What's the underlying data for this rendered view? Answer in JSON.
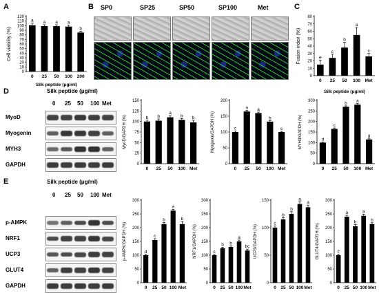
{
  "panels": {
    "A": "A",
    "B": "B",
    "C": "C",
    "D": "D",
    "E": "E"
  },
  "micrograph_labels": [
    "SP0",
    "SP25",
    "SP50",
    "SP100",
    "Met"
  ],
  "blot_header": "Silk peptide (μg/ml)",
  "blot_doses": [
    "0",
    "25",
    "50",
    "100",
    "Met"
  ],
  "blots_D": [
    "MyoD",
    "Myogenin",
    "MYH3",
    "GAPDH"
  ],
  "blots_E": [
    "p-AMPK",
    "NRF1",
    "UCP3",
    "GLUT4",
    "GAPDH"
  ],
  "chart_data": [
    {
      "id": "A",
      "type": "bar",
      "categories": [
        "0",
        "25",
        "50",
        "100",
        "200"
      ],
      "values": [
        101,
        99,
        99,
        98,
        85
      ],
      "errors": [
        5,
        3,
        3,
        3,
        3
      ],
      "letters": [
        "a",
        "a",
        "a",
        "a",
        "b"
      ],
      "ylabel": "Cell viability (%)",
      "xlabel": "Silk peptide (μg/ml)",
      "ylim": [
        0,
        120
      ],
      "yticks": [
        0,
        10,
        20,
        30,
        40,
        50,
        60,
        70,
        80,
        90,
        100,
        110,
        120
      ]
    },
    {
      "id": "C",
      "type": "bar",
      "categories": [
        "0",
        "25",
        "50",
        "100",
        "Met"
      ],
      "values": [
        15,
        24,
        38,
        55,
        26
      ],
      "errors": [
        6,
        5,
        7,
        10,
        4
      ],
      "letters": [
        "e",
        "c",
        "b",
        "a",
        "c"
      ],
      "ylabel": "Fusion index (%)",
      "xlabel": "Silk peptide (μg/ml)",
      "ylim": [
        0,
        80
      ],
      "yticks": [
        0,
        10,
        20,
        30,
        40,
        50,
        60,
        70,
        80
      ]
    },
    {
      "id": "D1",
      "type": "bar",
      "categories": [
        "0",
        "25",
        "50",
        "100",
        "Met"
      ],
      "values": [
        100,
        102,
        110,
        104,
        98
      ],
      "errors": [
        3,
        4,
        4,
        3,
        5
      ],
      "letters": [
        "b",
        "b",
        "a",
        "b",
        "b"
      ],
      "ylabel": "MyoD/GAPDH (%)",
      "ylim": [
        0,
        150
      ],
      "yticks": [
        0,
        25,
        50,
        75,
        100,
        125,
        150
      ]
    },
    {
      "id": "D2",
      "type": "bar",
      "categories": [
        "0",
        "25",
        "50",
        "100",
        "Met"
      ],
      "values": [
        100,
        165,
        160,
        133,
        100
      ],
      "errors": [
        3,
        3,
        3,
        3,
        2
      ],
      "letters": [
        "c",
        "a",
        "a",
        "b",
        "c"
      ],
      "ylabel": "Myogenin/GAPDH (%)",
      "ylim": [
        0,
        200
      ],
      "yticks": [
        0,
        50,
        100,
        150,
        200
      ]
    },
    {
      "id": "D3",
      "type": "bar",
      "categories": [
        "0",
        "25",
        "50",
        "100",
        "Met"
      ],
      "values": [
        100,
        165,
        270,
        280,
        115
      ],
      "errors": [
        3,
        4,
        4,
        5,
        3
      ],
      "letters": [
        "d",
        "c",
        "b",
        "a",
        "d"
      ],
      "ylabel": "MYH3/GAPDH (%)",
      "ylim": [
        0,
        300
      ],
      "yticks": [
        0,
        50,
        100,
        150,
        200,
        250,
        300
      ]
    },
    {
      "id": "E1",
      "type": "bar",
      "categories": [
        "0",
        "25",
        "50",
        "100",
        "Met"
      ],
      "values": [
        100,
        155,
        213,
        262,
        213
      ],
      "errors": [
        3,
        5,
        6,
        4,
        10
      ],
      "letters": [
        "d",
        "c",
        "b",
        "a",
        "b"
      ],
      "ylabel": "p-AMPK/GAPDH (%)",
      "ylim": [
        0,
        300
      ],
      "yticks": [
        0,
        50,
        100,
        150,
        200,
        250,
        300
      ]
    },
    {
      "id": "E2",
      "type": "bar",
      "categories": [
        "0",
        "25",
        "50",
        "100",
        "Met"
      ],
      "values": [
        100,
        125,
        130,
        150,
        117
      ],
      "errors": [
        3,
        4,
        4,
        5,
        5
      ],
      "letters": [
        "c",
        "b",
        "b",
        "a",
        "bc"
      ],
      "ylabel": "NRF1/GAPDH (%)",
      "ylim": [
        0,
        300
      ],
      "yticks": [
        0,
        50,
        100,
        150,
        200,
        250,
        300
      ]
    },
    {
      "id": "E3",
      "type": "bar",
      "categories": [
        "0",
        "25",
        "50",
        "100",
        "Met"
      ],
      "values": [
        100,
        115,
        125,
        143,
        137
      ],
      "errors": [
        3,
        3,
        4,
        4,
        4
      ],
      "letters": [
        "c",
        "b",
        "b",
        "a",
        "a"
      ],
      "ylabel": "UCP3/GAPDH (%)",
      "ylim": [
        0,
        150
      ],
      "yticks": [
        0,
        50,
        100,
        150
      ]
    },
    {
      "id": "E4",
      "type": "bar",
      "categories": [
        "0",
        "25",
        "50",
        "100",
        "Met"
      ],
      "values": [
        100,
        240,
        205,
        243,
        213
      ],
      "errors": [
        4,
        5,
        6,
        6,
        5
      ],
      "letters": [
        "c",
        "a",
        "b",
        "a",
        "b"
      ],
      "ylabel": "GLUT4/GAPDH (%)",
      "ylim": [
        0,
        300
      ],
      "yticks": [
        0,
        50,
        100,
        150,
        200,
        250,
        300
      ]
    }
  ]
}
